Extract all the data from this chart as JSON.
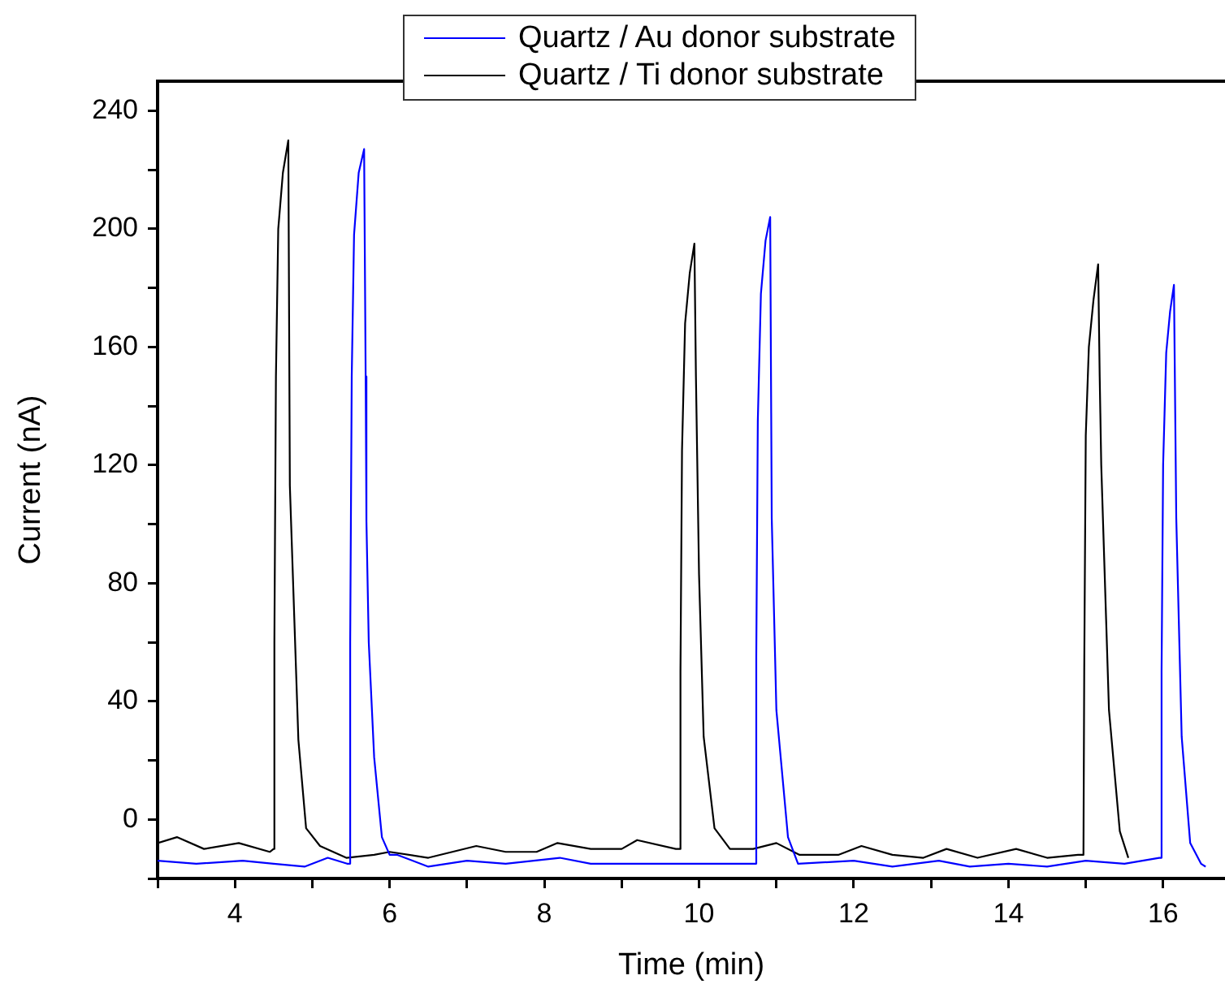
{
  "chart_data": {
    "type": "line",
    "xlabel": "Time (min)",
    "ylabel": "Current (nA)",
    "xlim": [
      3,
      16.8
    ],
    "ylim": [
      -20,
      250
    ],
    "xticks": [
      {
        "value": 3,
        "label": null
      },
      4,
      {
        "value": 5,
        "label": null
      },
      6,
      {
        "value": 7,
        "label": null
      },
      8,
      {
        "value": 9,
        "label": null
      },
      10,
      {
        "value": 11,
        "label": null
      },
      12,
      {
        "value": 13,
        "label": null
      },
      14,
      {
        "value": 15,
        "label": null
      },
      16
    ],
    "yticks": [
      {
        "value": -20,
        "label": null
      },
      0,
      {
        "value": 20,
        "label": null
      },
      40,
      {
        "value": 60,
        "label": null
      },
      80,
      {
        "value": 100,
        "label": null
      },
      120,
      {
        "value": 140,
        "label": null
      },
      160,
      {
        "value": 180,
        "label": null
      },
      200,
      {
        "value": 220,
        "label": null
      },
      240
    ],
    "grid": false,
    "legend": "top",
    "marker": "none",
    "line_style": "solid",
    "series": [
      {
        "name": "Quartz / Au donor substrate",
        "color": "#0000ff",
        "x": [
          3.0,
          3.5,
          4.1,
          4.5,
          4.9,
          5.2,
          5.45,
          5.48,
          5.49,
          5.51,
          5.54,
          5.6,
          5.67,
          5.69,
          5.7,
          5.73,
          5.8,
          5.9,
          6.0,
          6.1,
          6.5,
          7.0,
          7.5,
          8.2,
          8.6,
          9.2,
          10.0,
          10.7,
          10.73,
          10.74,
          10.76,
          10.8,
          10.86,
          10.92,
          10.94,
          11.0,
          11.15,
          11.28,
          12.0,
          12.5,
          13.1,
          13.5,
          14.0,
          14.5,
          15.0,
          15.5,
          15.95,
          15.97,
          15.98,
          16.0,
          16.04,
          16.09,
          16.14,
          16.17,
          16.24,
          16.35,
          16.49,
          16.55
        ],
        "values": [
          -14,
          -15,
          -14,
          -15,
          -16,
          -13,
          -15,
          -15,
          60,
          150,
          198,
          219,
          227,
          150,
          101,
          60,
          21,
          -6,
          -12,
          -12,
          -16,
          -14,
          -15,
          -13,
          -15,
          -15,
          -15,
          -15,
          -15,
          55,
          135,
          178,
          196,
          204,
          102,
          37,
          -6,
          -15,
          -14,
          -16,
          -14,
          -16,
          -15,
          -16,
          -14,
          -15,
          -13,
          -13,
          50,
          120,
          158,
          172,
          181,
          102,
          28,
          -8,
          -15,
          -16
        ]
      },
      {
        "name": "Quartz / Ti donor substrate",
        "color": "#000000",
        "x": [
          3.0,
          3.25,
          3.6,
          4.05,
          4.45,
          4.5,
          4.51,
          4.53,
          4.56,
          4.62,
          4.69,
          4.71,
          4.82,
          4.92,
          5.1,
          5.44,
          5.8,
          6.0,
          6.5,
          7.12,
          7.5,
          7.9,
          8.17,
          8.6,
          9.0,
          9.2,
          9.7,
          9.75,
          9.76,
          9.78,
          9.82,
          9.88,
          9.94,
          9.96,
          10.0,
          10.06,
          10.2,
          10.4,
          10.7,
          11.0,
          11.3,
          11.8,
          12.1,
          12.5,
          12.9,
          13.2,
          13.6,
          14.1,
          14.5,
          14.9,
          14.97,
          14.98,
          15.0,
          15.04,
          15.1,
          15.16,
          15.18,
          15.2,
          15.3,
          15.44,
          15.55
        ],
        "values": [
          -8,
          -6,
          -10,
          -8,
          -11,
          -10,
          60,
          150,
          200,
          219,
          230,
          113,
          27,
          -3,
          -9,
          -13,
          -12,
          -11,
          -13,
          -9,
          -11,
          -11,
          -8,
          -10,
          -10,
          -7,
          -10,
          -10,
          50,
          125,
          168,
          185,
          195,
          150,
          83,
          28,
          -3,
          -10,
          -10,
          -8,
          -12,
          -12,
          -9,
          -12,
          -13,
          -10,
          -13,
          -10,
          -13,
          -12,
          -12,
          50,
          130,
          160,
          176,
          188,
          150,
          120,
          37,
          -4,
          -13
        ]
      }
    ]
  }
}
